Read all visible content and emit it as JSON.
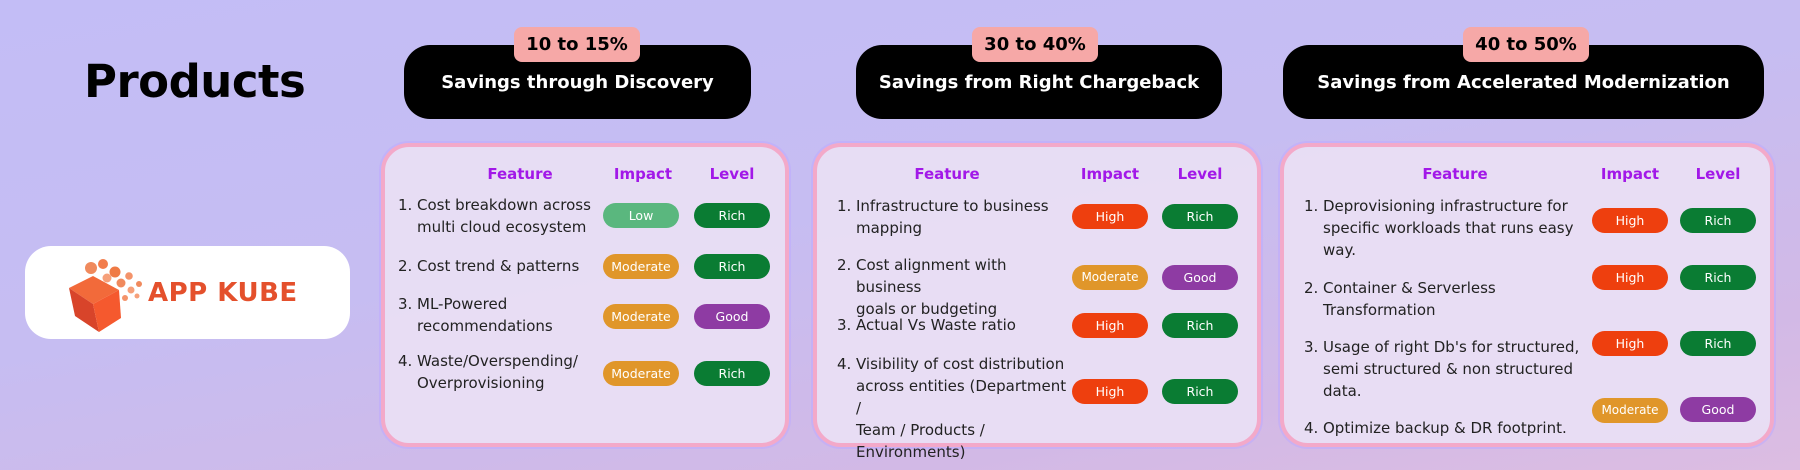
{
  "page": {
    "title": "Products"
  },
  "logo": {
    "text": "APP KUBE",
    "icon": "cube-logo-icon",
    "color": "#e4502c"
  },
  "colors": {
    "Low": "#5ab77e",
    "Moderate": "#e0962a",
    "High": "#ee3f0e",
    "Rich": "#0a7c33",
    "Good": "#8e3ba3",
    "header_text": "#a218e8"
  },
  "columns": {
    "feature": "Feature",
    "impact": "Impact",
    "level": "Level"
  },
  "cards": [
    {
      "range": "10 to 15%",
      "title": "Savings through Discovery",
      "features": [
        {
          "num": "1.",
          "lines": [
            "Cost breakdown across",
            "multi cloud ecosystem"
          ],
          "impact": "Low",
          "level": "Rich"
        },
        {
          "num": "2.",
          "lines": [
            "Cost trend & patterns"
          ],
          "impact": "Moderate",
          "level": "Rich"
        },
        {
          "num": "3.",
          "lines": [
            "ML-Powered",
            "recommendations"
          ],
          "impact": "Moderate",
          "level": "Good"
        },
        {
          "num": "4.",
          "lines": [
            "Waste/Overspending/",
            "Overprovisioning"
          ],
          "impact": "Moderate",
          "level": "Rich"
        }
      ]
    },
    {
      "range": "30 to 40%",
      "title": "Savings from Right Chargeback",
      "features": [
        {
          "num": "1.",
          "lines": [
            "Infrastructure to business",
            "mapping"
          ],
          "impact": "High",
          "level": "Rich"
        },
        {
          "num": "2.",
          "lines": [
            "Cost alignment with business",
            "goals or budgeting"
          ],
          "impact": "Moderate",
          "level": "Good"
        },
        {
          "num": "3.",
          "lines": [
            "Actual Vs Waste ratio"
          ],
          "impact": "High",
          "level": "Rich"
        },
        {
          "num": "4.",
          "lines": [
            "Visibility of cost distribution",
            "across entities (Department /",
            "Team / Products /",
            "Environments)"
          ],
          "impact": "High",
          "level": "Rich"
        }
      ]
    },
    {
      "range": "40 to 50%",
      "title": "Savings from Accelerated Modernization",
      "features": [
        {
          "num": "1.",
          "lines": [
            "Deprovisioning infrastructure for",
            "specific workloads that runs easy",
            "way."
          ],
          "impact": "High",
          "level": "Rich"
        },
        {
          "num": "2.",
          "lines": [
            "Container & Serverless",
            "Transformation"
          ],
          "impact": "High",
          "level": "Rich"
        },
        {
          "num": "3.",
          "lines": [
            "Usage of right Db's for structured,",
            "semi structured & non structured",
            "data."
          ],
          "impact": "High",
          "level": "Rich"
        },
        {
          "num": "4.",
          "lines": [
            "Optimize backup & DR footprint."
          ],
          "impact": "Moderate",
          "level": "Good"
        }
      ]
    }
  ]
}
